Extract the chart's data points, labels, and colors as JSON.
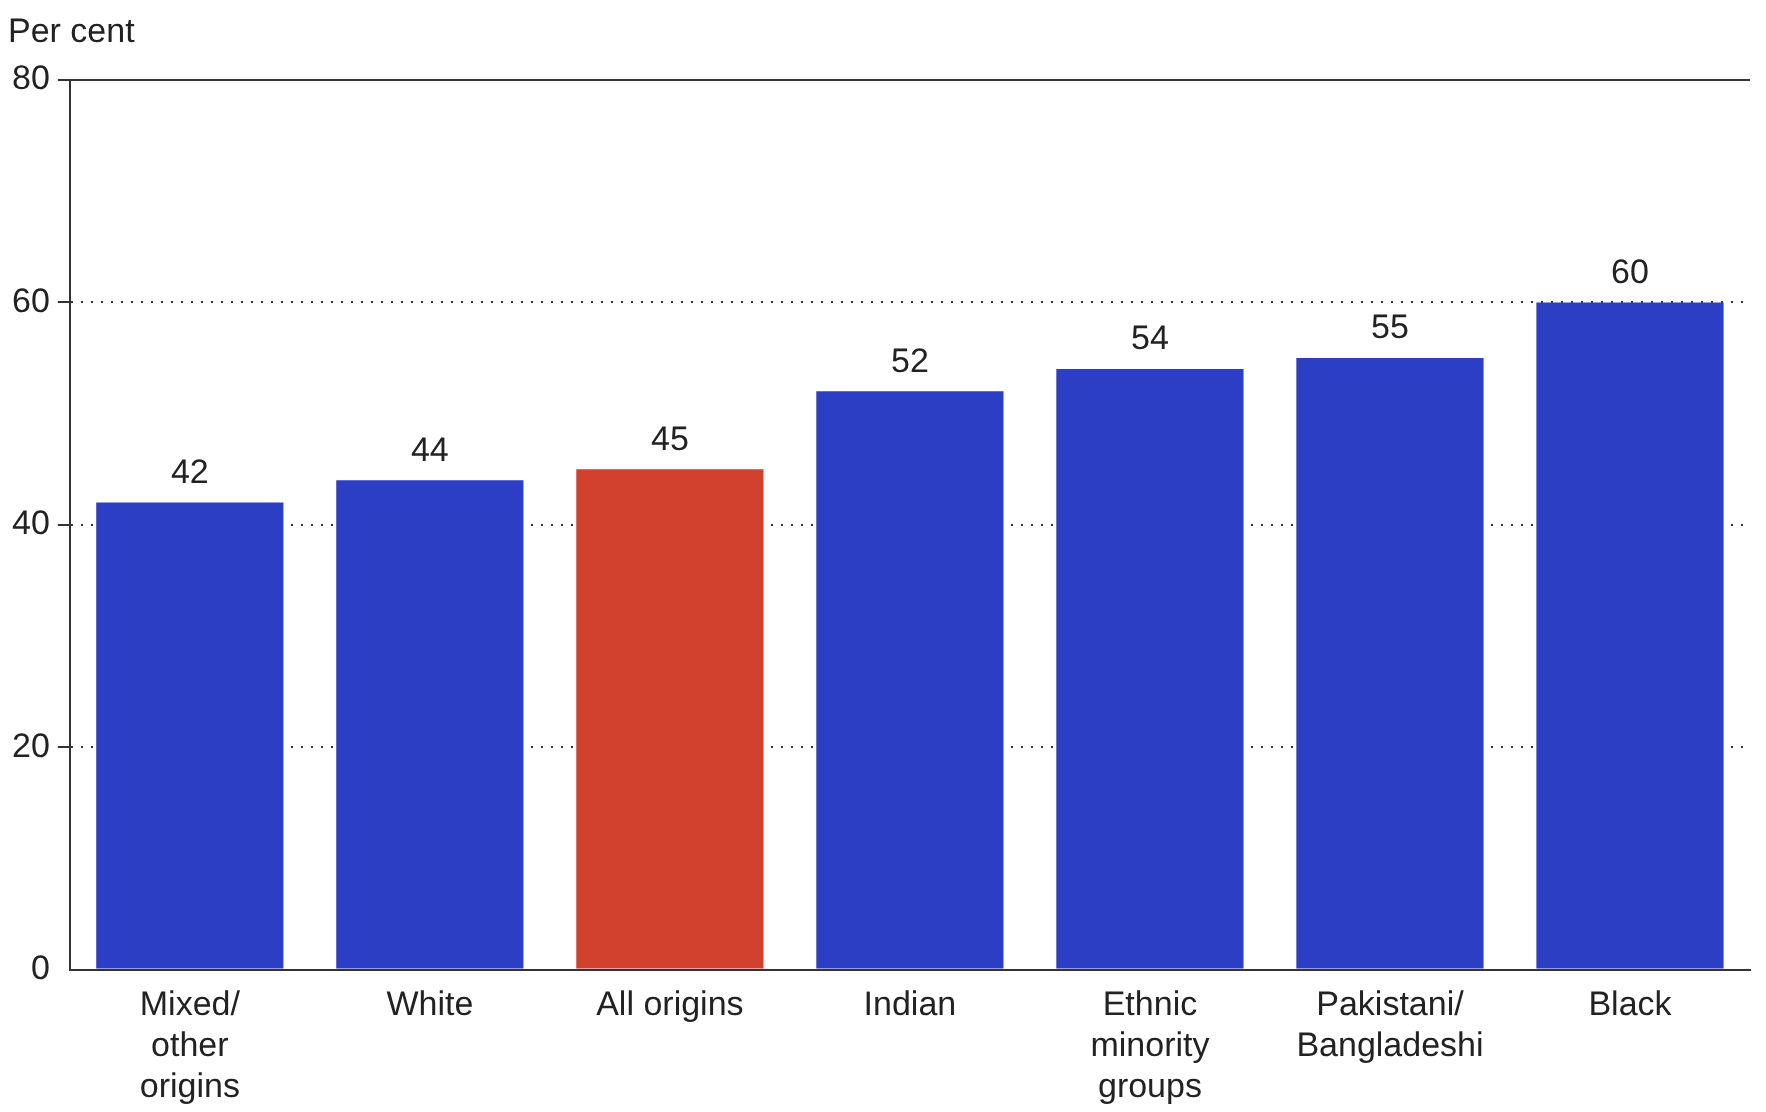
{
  "chart_data": {
    "type": "bar",
    "ylabel": "Per cent",
    "categories": [
      "Mixed/\nother\norigins",
      "White",
      "All origins",
      "Indian",
      "Ethnic\nminority\ngroups",
      "Pakistani/\nBangladeshi",
      "Black"
    ],
    "values": [
      42,
      44,
      45,
      52,
      54,
      55,
      60
    ],
    "colors": [
      "#2b3ec4",
      "#2b3ec4",
      "#d2402e",
      "#2b3ec4",
      "#2b3ec4",
      "#2b3ec4",
      "#2b3ec4"
    ],
    "ylim": [
      0,
      80
    ],
    "yticks": [
      0,
      20,
      40,
      60,
      80
    ],
    "grid": "y",
    "data_labels": true,
    "legend": false
  }
}
